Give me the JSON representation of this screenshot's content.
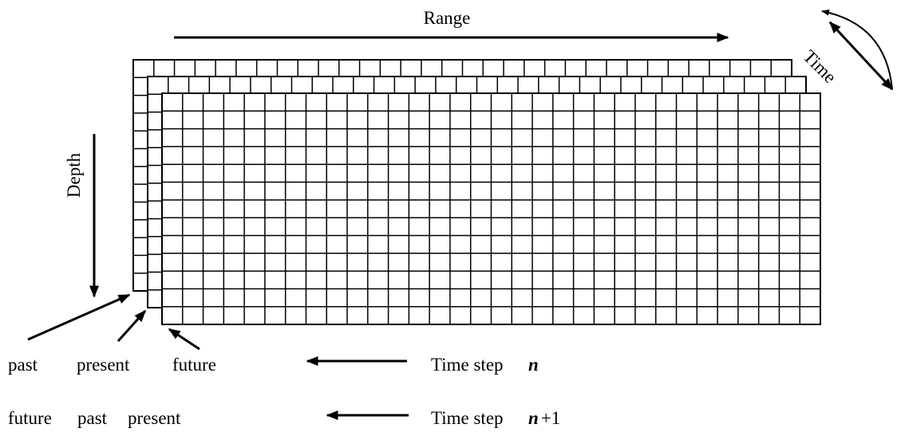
{
  "labels": {
    "range": "Range",
    "depth": "Depth",
    "time": "Time"
  },
  "rows": [
    {
      "words": [
        "past",
        "present",
        "future"
      ],
      "step": "Time step",
      "var": "n",
      "suffix": ""
    },
    {
      "words": [
        "future",
        "past",
        "present"
      ],
      "step": "Time step",
      "var": "n",
      "suffix": "+1"
    }
  ]
}
